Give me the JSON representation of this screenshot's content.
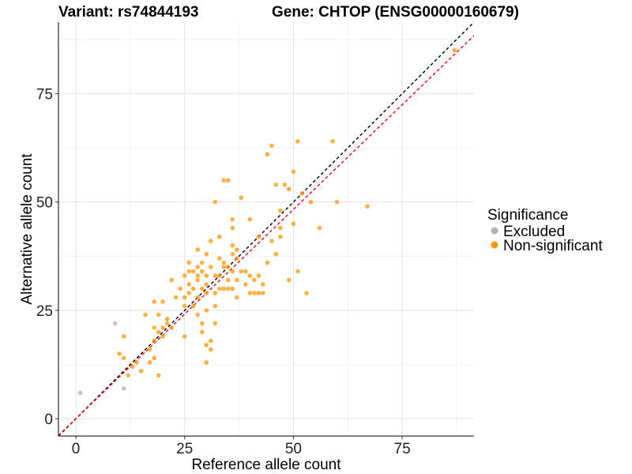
{
  "title": {
    "variant": "Variant: rs74844193",
    "gene": "Gene: CHTOP (ENSG00000160679)"
  },
  "chart_data": {
    "type": "scatter",
    "xlabel": "Reference allele count",
    "ylabel": "Alternative allele count",
    "xlim": [
      -4,
      91.5
    ],
    "ylim": [
      -4,
      91.5
    ],
    "x_ticks": [
      "0",
      "25",
      "50",
      "75"
    ],
    "y_ticks": [
      "0",
      "25",
      "50",
      "75"
    ],
    "grid": true,
    "legend": {
      "title": "Significance",
      "position": "right",
      "entries": [
        {
          "label": "Excluded",
          "color": "#b3b3b3"
        },
        {
          "label": "Non-significant",
          "color": "#ff9500"
        }
      ]
    },
    "reference_lines": [
      {
        "name": "identity",
        "slope": 1.0,
        "intercept": 0,
        "color": "#000000",
        "style": "dashed"
      },
      {
        "name": "fit",
        "slope": 0.966,
        "intercept": 0,
        "color": "#ff0000",
        "style": "dashed"
      }
    ],
    "series": [
      {
        "name": "Excluded",
        "color": "#b3b3b3",
        "points": [
          [
            1,
            6
          ],
          [
            9,
            22
          ],
          [
            11,
            7
          ]
        ]
      },
      {
        "name": "Non-significant",
        "color": "#ff9500",
        "points": [
          [
            10,
            15
          ],
          [
            11,
            14
          ],
          [
            11,
            19
          ],
          [
            12,
            10
          ],
          [
            13,
            12
          ],
          [
            14,
            13
          ],
          [
            15,
            11
          ],
          [
            16,
            24
          ],
          [
            17,
            13
          ],
          [
            17,
            16
          ],
          [
            18,
            14
          ],
          [
            18,
            18
          ],
          [
            18,
            21
          ],
          [
            18,
            27
          ],
          [
            19,
            10
          ],
          [
            19,
            20
          ],
          [
            19,
            24
          ],
          [
            20,
            19
          ],
          [
            20,
            21
          ],
          [
            20,
            27
          ],
          [
            21,
            22
          ],
          [
            21,
            23
          ],
          [
            22,
            21
          ],
          [
            22,
            32
          ],
          [
            23,
            28
          ],
          [
            24,
            30
          ],
          [
            25,
            33
          ],
          [
            25,
            28
          ],
          [
            25,
            26
          ],
          [
            25,
            19
          ],
          [
            26,
            34
          ],
          [
            26,
            36
          ],
          [
            26,
            29
          ],
          [
            26,
            31
          ],
          [
            27,
            30
          ],
          [
            27,
            26
          ],
          [
            27,
            34
          ],
          [
            28,
            39
          ],
          [
            28,
            35
          ],
          [
            28,
            33
          ],
          [
            28,
            32
          ],
          [
            28,
            28
          ],
          [
            28,
            24
          ],
          [
            29,
            34
          ],
          [
            29,
            30
          ],
          [
            29,
            22
          ],
          [
            29,
            20
          ],
          [
            29,
            36
          ],
          [
            30,
            33
          ],
          [
            30,
            31
          ],
          [
            30,
            29
          ],
          [
            30,
            17
          ],
          [
            30,
            13
          ],
          [
            30,
            25
          ],
          [
            30,
            38
          ],
          [
            31,
            41
          ],
          [
            31,
            35
          ],
          [
            31,
            16
          ],
          [
            31,
            18
          ],
          [
            32,
            50
          ],
          [
            32,
            29
          ],
          [
            32,
            33
          ],
          [
            32,
            26
          ],
          [
            32,
            22
          ],
          [
            33,
            30
          ],
          [
            33,
            33
          ],
          [
            33,
            42
          ],
          [
            33,
            37
          ],
          [
            34,
            55
          ],
          [
            34,
            36
          ],
          [
            34,
            30
          ],
          [
            34,
            35
          ],
          [
            35,
            55
          ],
          [
            35,
            30
          ],
          [
            35,
            35
          ],
          [
            35,
            32
          ],
          [
            36,
            46
          ],
          [
            36,
            44
          ],
          [
            36,
            38
          ],
          [
            36,
            34
          ],
          [
            36,
            30
          ],
          [
            36,
            40
          ],
          [
            37,
            32
          ],
          [
            37,
            39
          ],
          [
            37,
            37
          ],
          [
            37,
            28
          ],
          [
            38,
            51
          ],
          [
            38,
            34
          ],
          [
            39,
            34
          ],
          [
            39,
            31
          ],
          [
            40,
            46
          ],
          [
            40,
            33
          ],
          [
            40,
            29
          ],
          [
            41,
            32
          ],
          [
            41,
            29
          ],
          [
            42,
            42
          ],
          [
            42,
            33
          ],
          [
            42,
            29
          ],
          [
            43,
            31
          ],
          [
            43,
            29
          ],
          [
            44,
            61
          ],
          [
            44,
            36
          ],
          [
            45,
            63
          ],
          [
            45,
            41
          ],
          [
            46,
            54
          ],
          [
            46,
            38
          ],
          [
            47,
            44
          ],
          [
            47,
            48
          ],
          [
            47,
            42
          ],
          [
            48,
            54
          ],
          [
            49,
            53
          ],
          [
            49,
            32
          ],
          [
            50,
            57
          ],
          [
            50,
            45
          ],
          [
            51,
            64
          ],
          [
            51,
            34
          ],
          [
            52,
            52
          ],
          [
            53,
            29
          ],
          [
            54,
            50
          ],
          [
            56,
            44
          ],
          [
            59,
            64
          ],
          [
            60,
            50
          ],
          [
            67,
            49
          ],
          [
            87,
            85
          ]
        ]
      }
    ]
  }
}
